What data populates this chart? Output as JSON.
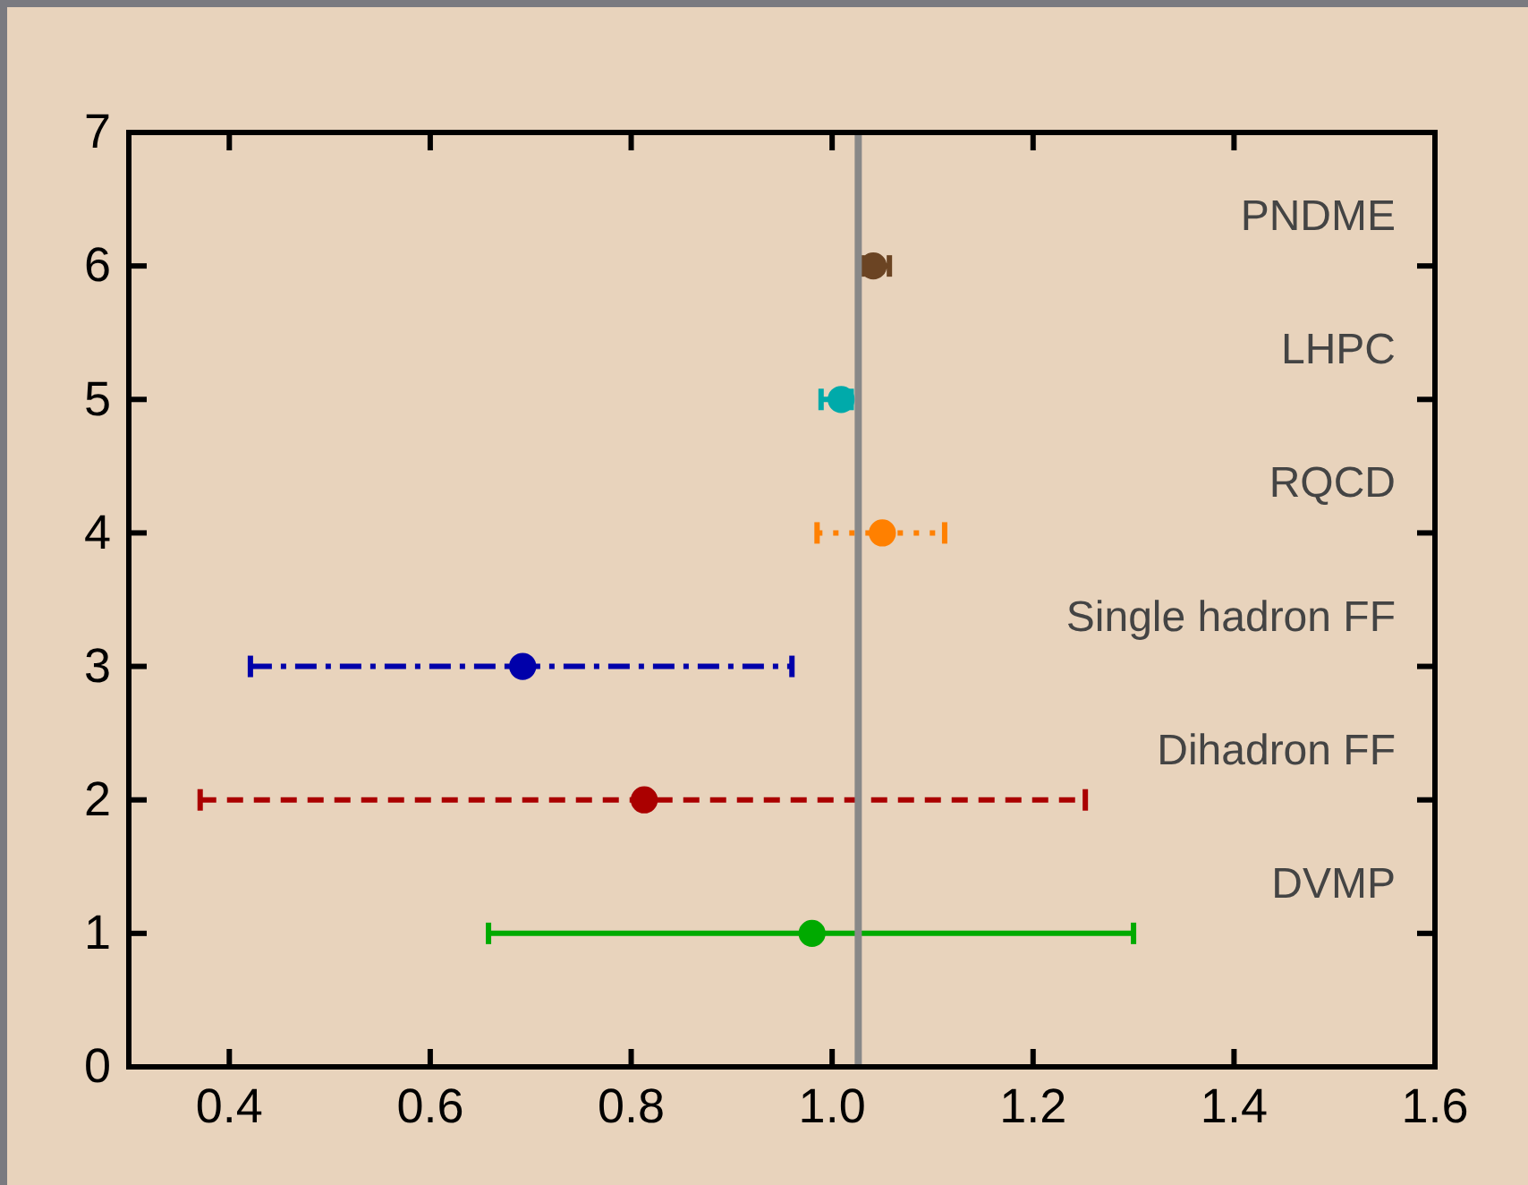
{
  "chart_data": {
    "type": "scatter",
    "xlim": [
      0.3,
      1.6
    ],
    "ylim": [
      0,
      7
    ],
    "xticks": [
      0.4,
      0.6,
      0.8,
      {
        "value": 1,
        "label": "1.0"
      },
      1.2,
      1.4,
      1.6
    ],
    "yticks": [
      0,
      1,
      2,
      3,
      4,
      5,
      6,
      7
    ],
    "marker": "circle",
    "grid": false,
    "ref_lines": [
      {
        "axis": "x",
        "value": 1.026,
        "color": "#888888"
      }
    ],
    "series": [
      {
        "name": "DVMP",
        "color": "#00aa00",
        "x": [
          0.98
        ],
        "values": [
          1
        ],
        "xerrors": [
          [
            0.658,
            1.3
          ]
        ],
        "line_style": "solid"
      },
      {
        "name": "Dihadron FF",
        "color": "#aa0000",
        "x": [
          0.813
        ],
        "values": [
          2
        ],
        "xerrors": [
          [
            0.371,
            1.252
          ]
        ],
        "line_style": "dashed"
      },
      {
        "name": "Single hadron FF",
        "color": "#0000aa",
        "x": [
          0.692
        ],
        "values": [
          3
        ],
        "xerrors": [
          [
            0.421,
            0.96
          ]
        ],
        "line_style": "dashdot"
      },
      {
        "name": "RQCD",
        "color": "#ff8000",
        "x": [
          1.05
        ],
        "values": [
          4
        ],
        "xerrors": [
          [
            0.985,
            1.112
          ]
        ],
        "line_style": "dotted"
      },
      {
        "name": "LHPC",
        "color": "#00aaaa",
        "x": [
          1.009
        ],
        "values": [
          5
        ],
        "xerrors": [
          [
            0.989,
            1.019
          ]
        ],
        "line_style": "solid"
      },
      {
        "name": "PNDME",
        "color": "#6b4423",
        "x": [
          1.041
        ],
        "values": [
          6
        ],
        "xerrors": [
          [
            1.03,
            1.057
          ]
        ],
        "line_style": "solid"
      }
    ]
  }
}
